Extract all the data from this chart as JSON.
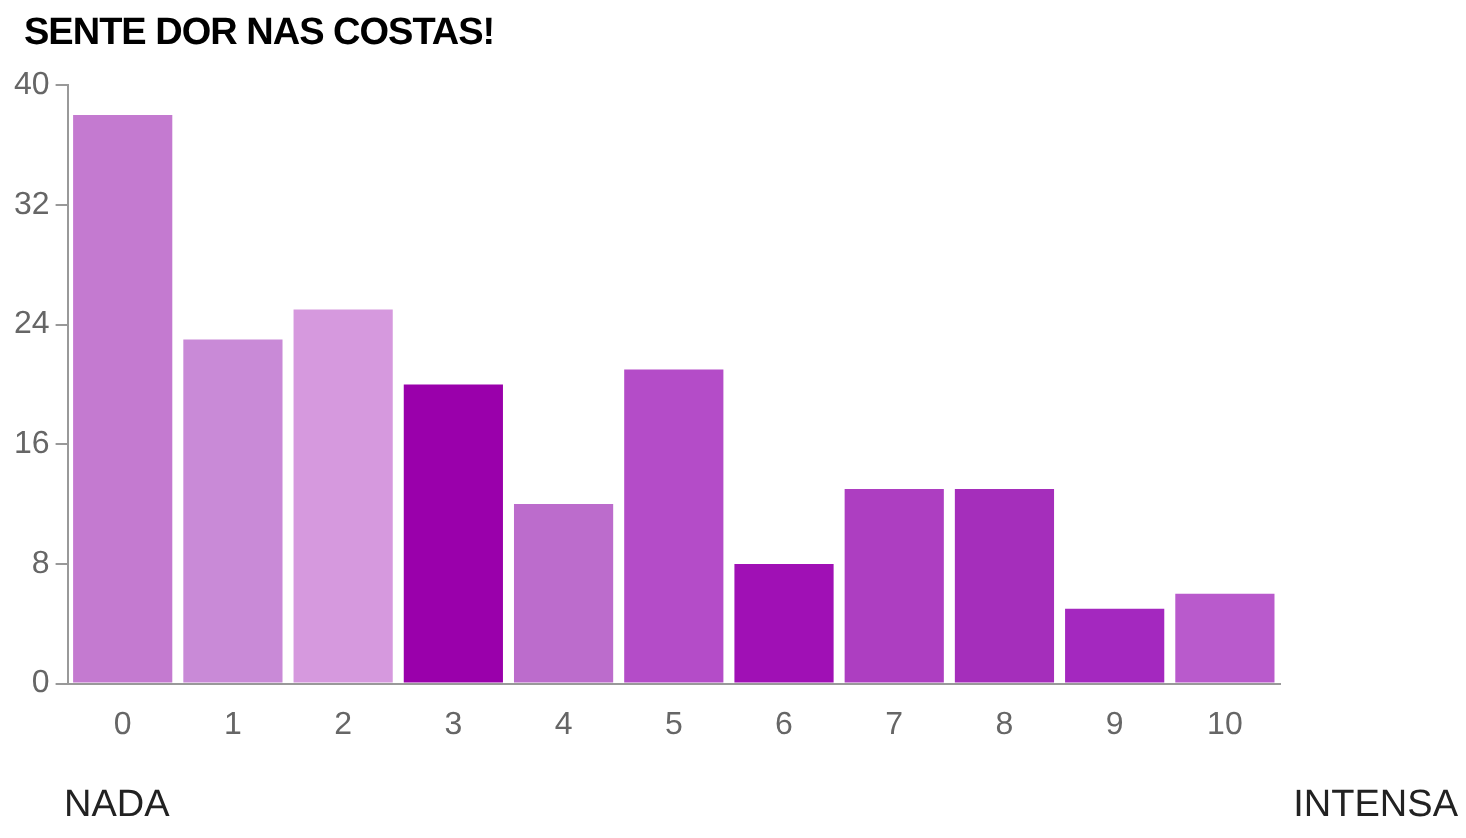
{
  "chart_data": {
    "type": "bar",
    "title": "SENTE DOR NAS COSTAS!",
    "categories": [
      "0",
      "1",
      "2",
      "3",
      "4",
      "5",
      "6",
      "7",
      "8",
      "9",
      "10"
    ],
    "values": [
      38,
      23,
      25,
      20,
      12,
      21,
      8,
      13,
      13,
      5,
      6
    ],
    "colors": [
      "#c47ad0",
      "#c98ad7",
      "#d699de",
      "#9a00ab",
      "#bc6ccc",
      "#b44cc8",
      "#a010b5",
      "#ad3ec1",
      "#a52ebb",
      "#a428bf",
      "#b95acc"
    ],
    "ylim": [
      0,
      40
    ],
    "yticks": [
      0,
      8,
      16,
      24,
      32,
      40
    ],
    "grid": false,
    "legend": false,
    "annotations": [
      "NADA",
      "INTENSA"
    ]
  }
}
